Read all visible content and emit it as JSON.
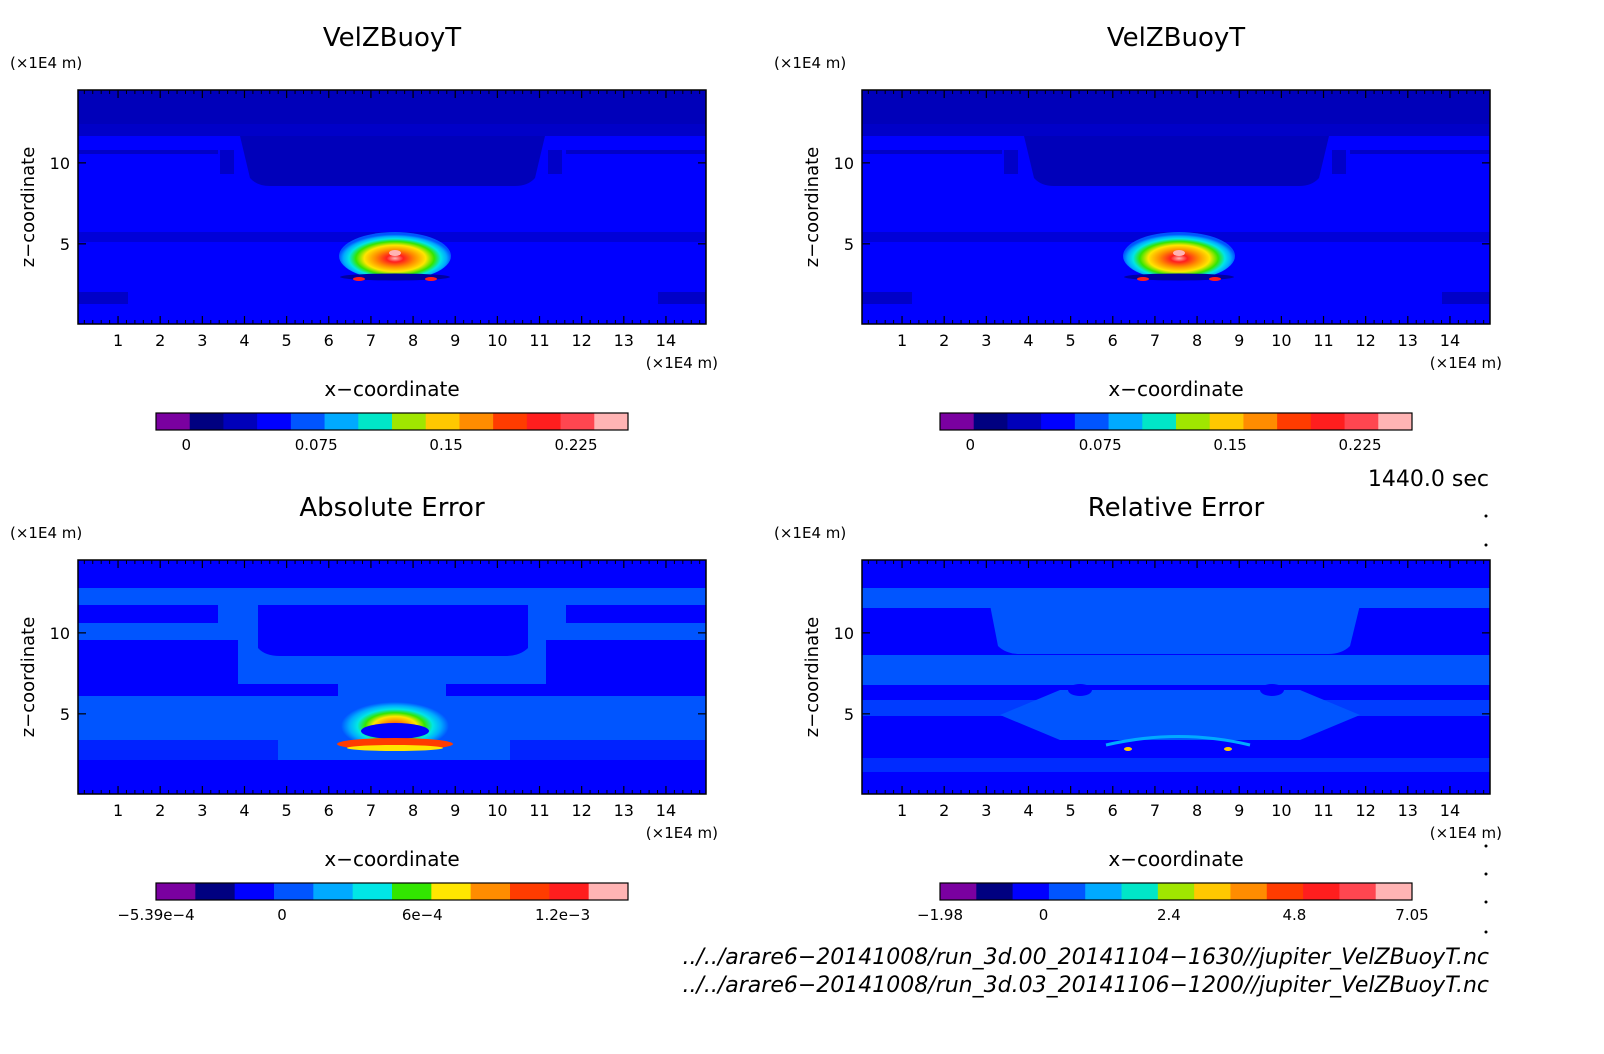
{
  "chart_data": [
    {
      "type": "heatmap",
      "title": "VelZBuoyT",
      "xlabel": "x−coordinate",
      "ylabel": "z−coordinate",
      "x_unit_label": "(×1E4 m)",
      "y_unit_label": "(×1E4 m)",
      "xlim": [
        0.05,
        14.95
      ],
      "ylim": [
        0.05,
        14.5
      ],
      "x_ticks": [
        1,
        2,
        3,
        4,
        5,
        6,
        7,
        8,
        9,
        10,
        11,
        12,
        13,
        14
      ],
      "y_ticks": [
        5,
        10
      ],
      "colorbar": {
        "range": [
          -0.0175,
          0.255
        ],
        "tick_values": [
          0,
          0.075,
          0.15,
          0.225
        ],
        "tick_labels": [
          "0",
          "0.075",
          "0.15",
          "0.225"
        ],
        "colors": [
          "#7a00a0",
          "#000080",
          "#0000ba",
          "#0000ff",
          "#0055ff",
          "#00aaff",
          "#00e6c8",
          "#a0e600",
          "#ffc800",
          "#ff8c00",
          "#ff3c00",
          "#ff1e1e",
          "#ff4650",
          "#ffb4b4"
        ]
      }
    },
    {
      "type": "heatmap",
      "title": "VelZBuoyT",
      "xlabel": "x−coordinate",
      "ylabel": "z−coordinate",
      "x_unit_label": "(×1E4 m)",
      "y_unit_label": "(×1E4 m)",
      "xlim": [
        0.05,
        14.95
      ],
      "ylim": [
        0.05,
        14.5
      ],
      "x_ticks": [
        1,
        2,
        3,
        4,
        5,
        6,
        7,
        8,
        9,
        10,
        11,
        12,
        13,
        14
      ],
      "y_ticks": [
        5,
        10
      ],
      "colorbar": {
        "range": [
          -0.0175,
          0.255
        ],
        "tick_values": [
          0,
          0.075,
          0.15,
          0.225
        ],
        "tick_labels": [
          "0",
          "0.075",
          "0.15",
          "0.225"
        ],
        "colors": [
          "#7a00a0",
          "#000080",
          "#0000ba",
          "#0000ff",
          "#0055ff",
          "#00aaff",
          "#00e6c8",
          "#a0e600",
          "#ffc800",
          "#ff8c00",
          "#ff3c00",
          "#ff1e1e",
          "#ff4650",
          "#ffb4b4"
        ]
      }
    },
    {
      "type": "heatmap",
      "title": "Absolute Error",
      "xlabel": "x−coordinate",
      "ylabel": "z−coordinate",
      "x_unit_label": "(×1E4 m)",
      "y_unit_label": "(×1E4 m)",
      "xlim": [
        0.05,
        14.95
      ],
      "ylim": [
        0.05,
        14.5
      ],
      "x_ticks": [
        1,
        2,
        3,
        4,
        5,
        6,
        7,
        8,
        9,
        10,
        11,
        12,
        13,
        14
      ],
      "y_ticks": [
        5,
        10
      ],
      "colorbar": {
        "range": [
          -0.000539,
          0.00148
        ],
        "tick_values": [
          -0.000539,
          0,
          0.0006,
          0.0012
        ],
        "tick_labels": [
          "−5.39e−4",
          "0",
          "6e−4",
          "1.2e−3"
        ],
        "colors": [
          "#7a00a0",
          "#000080",
          "#0000ff",
          "#0055ff",
          "#00aaff",
          "#00e6e6",
          "#32e600",
          "#ffe600",
          "#ff8c00",
          "#ff3c00",
          "#ff1e1e",
          "#ffb4b4"
        ]
      }
    },
    {
      "type": "heatmap",
      "title": "Relative Error",
      "xlabel": "x−coordinate",
      "ylabel": "z−coordinate",
      "x_unit_label": "(×1E4 m)",
      "y_unit_label": "(×1E4 m)",
      "xlim": [
        0.05,
        14.95
      ],
      "ylim": [
        0.05,
        14.5
      ],
      "x_ticks": [
        1,
        2,
        3,
        4,
        5,
        6,
        7,
        8,
        9,
        10,
        11,
        12,
        13,
        14
      ],
      "y_ticks": [
        5,
        10
      ],
      "colorbar": {
        "range": [
          -1.98,
          7.05
        ],
        "tick_values": [
          -1.98,
          0,
          2.4,
          4.8,
          7.05
        ],
        "tick_labels": [
          "−1.98",
          "0",
          "2.4",
          "4.8",
          "7.05"
        ],
        "colors": [
          "#7a00a0",
          "#000080",
          "#0000ff",
          "#0055ff",
          "#00aaff",
          "#00e6c8",
          "#a0e600",
          "#ffc800",
          "#ff8c00",
          "#ff3c00",
          "#ff1e1e",
          "#ff4650",
          "#ffb4b4"
        ]
      }
    }
  ],
  "annotations": {
    "time": "1440.0 sec",
    "file1": "../../arare6−20141008/run_3d.00_20141104−1630//jupiter_VelZBuoyT.nc",
    "file2": "../../arare6−20141008/run_3d.03_20141106−1200//jupiter_VelZBuoyT.nc"
  }
}
